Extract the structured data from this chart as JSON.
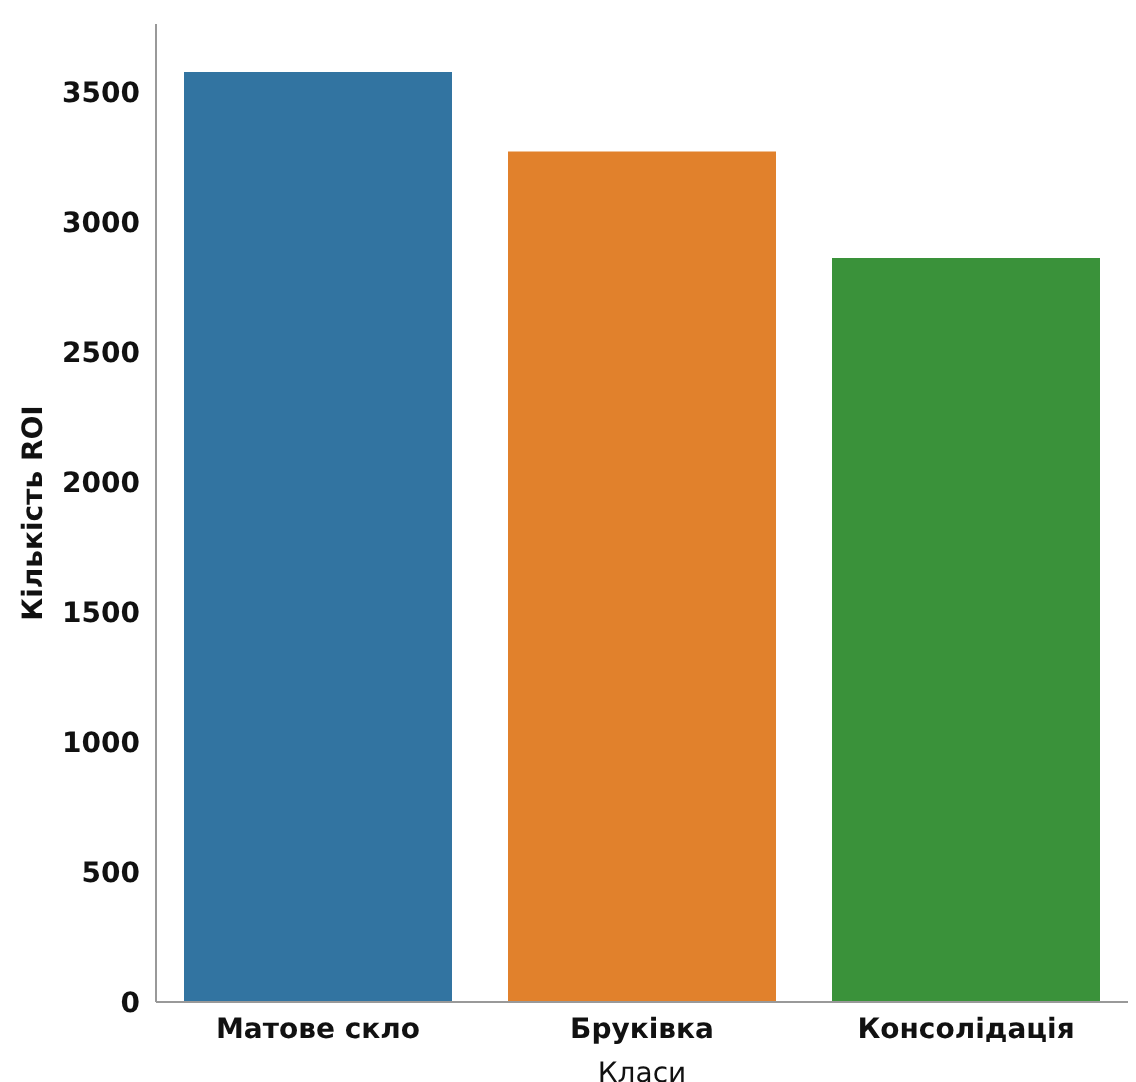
{
  "chart_data": {
    "type": "bar",
    "xlabel": "Класи",
    "ylabel": "Кількість ROI",
    "categories": [
      "Матове скло",
      "Бруківка",
      "Консолідація"
    ],
    "values": [
      3575,
      3270,
      2860
    ],
    "colors": [
      "#3274a1",
      "#e1812c",
      "#3a923a"
    ],
    "ylim": [
      0,
      3760
    ],
    "yticks": [
      0,
      500,
      1000,
      1500,
      2000,
      2500,
      3000,
      3500
    ],
    "grid": false
  }
}
